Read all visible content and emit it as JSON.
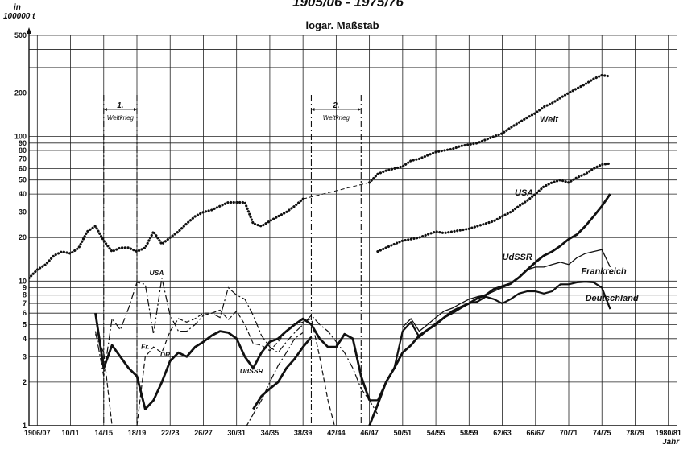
{
  "chart_data": {
    "type": "line",
    "title": "1905/06 - 1975/76",
    "subtitle": "logar. Maßstab",
    "yunit_line1": "in",
    "yunit_line2": "100000 t",
    "xlabel": "Jahr",
    "yscale": "log",
    "ylim": [
      1,
      500
    ],
    "yticks": [
      1,
      2,
      3,
      4,
      5,
      6,
      7,
      8,
      9,
      10,
      20,
      30,
      40,
      50,
      60,
      70,
      80,
      90,
      100,
      200,
      300,
      400,
      500
    ],
    "ytick_labels": [
      "1",
      "2",
      "3",
      "4",
      "5",
      "6",
      "7",
      "8",
      "9",
      "10",
      "20",
      "30",
      "40",
      "50",
      "60",
      "70",
      "80",
      "90",
      "100",
      "200",
      "",
      "",
      "500"
    ],
    "xlim": [
      1905,
      1983
    ],
    "x_tick_labels": [
      "1906/07",
      "10/11",
      "14/15",
      "18/19",
      "22/23",
      "26/27",
      "30/31",
      "34/35",
      "38/39",
      "42/44",
      "46/47",
      "50/51",
      "54/55",
      "58/59",
      "62/63",
      "66/67",
      "70/71",
      "74/75",
      "78/79",
      "1980/81"
    ],
    "annotations": [
      {
        "text_line1": "1.",
        "text_line2": "Weltkrieg",
        "x_start": 1914,
        "x_end": 1918
      },
      {
        "text_line1": "2.",
        "text_line2": "Weltkrieg",
        "x_start": 1939,
        "x_end": 1945
      }
    ],
    "series_labels": {
      "welt": "Welt",
      "usa": "USA",
      "udssr": "UdSSR",
      "frankreich": "Frankreich",
      "deutschland": "Deutschland",
      "usa_early": "USA",
      "fr": "Fr.",
      "dr": "DR",
      "udssr_early": "UdSSR"
    },
    "series": [
      {
        "key": "welt",
        "name": "Welt",
        "style": "dotted",
        "x": [
          1905,
          1906,
          1907,
          1908,
          1909,
          1910,
          1911,
          1912,
          1913,
          1914,
          1915,
          1916,
          1917,
          1918,
          1919,
          1920,
          1921,
          1922,
          1923,
          1924,
          1925,
          1926,
          1927,
          1928,
          1929,
          1930,
          1931,
          1932,
          1933,
          1934,
          1935,
          1936,
          1937,
          1938,
          1939,
          1940,
          1941,
          1942,
          1943,
          1944,
          1945,
          1946,
          1947,
          1948,
          1949,
          1950,
          1951,
          1952,
          1953,
          1954,
          1955,
          1956,
          1957,
          1958,
          1959,
          1960,
          1961,
          1962,
          1963,
          1964,
          1965,
          1966,
          1967,
          1968,
          1969,
          1970,
          1971,
          1972,
          1973,
          1974,
          1975
        ],
        "y": [
          10.5,
          12,
          13,
          15,
          16,
          15.5,
          17,
          22,
          24,
          19,
          16,
          17,
          17,
          16,
          17,
          22,
          18,
          20,
          22,
          25,
          28,
          30,
          31,
          33,
          35,
          35,
          35,
          25,
          24,
          26,
          28,
          30,
          33,
          37,
          36,
          35,
          36,
          34,
          33,
          33,
          33,
          48,
          55,
          58,
          60,
          62,
          68,
          70,
          74,
          78,
          80,
          82,
          86,
          88,
          90,
          95,
          100,
          105,
          115,
          125,
          135,
          145,
          160,
          170,
          185,
          200,
          215,
          230,
          250,
          265,
          260
        ],
        "gap": [
          [
            1938,
            1946
          ]
        ]
      },
      {
        "key": "usa",
        "name": "USA",
        "style": "dotted",
        "x": [
          1947,
          1948,
          1949,
          1950,
          1951,
          1952,
          1953,
          1954,
          1955,
          1956,
          1957,
          1958,
          1959,
          1960,
          1961,
          1962,
          1963,
          1964,
          1965,
          1966,
          1967,
          1968,
          1969,
          1970,
          1971,
          1972,
          1973,
          1974,
          1975
        ],
        "y": [
          16,
          17,
          18,
          19,
          19.5,
          20,
          21,
          22,
          21.5,
          22,
          22.5,
          23,
          24,
          25,
          26,
          28,
          30,
          33,
          36,
          40,
          45,
          48,
          50,
          48,
          52,
          55,
          60,
          64,
          65
        ],
        "gap": []
      },
      {
        "key": "udssr",
        "name": "UdSSR",
        "style": "thick",
        "x": [
          1946,
          1947,
          1948,
          1949,
          1950,
          1951,
          1952,
          1953,
          1954,
          1955,
          1956,
          1957,
          1958,
          1959,
          1960,
          1961,
          1962,
          1963,
          1964,
          1965,
          1966,
          1967,
          1968,
          1969,
          1970,
          1971,
          1972,
          1973,
          1974,
          1975
        ],
        "y": [
          1.0,
          1.4,
          2.0,
          2.5,
          3.2,
          3.6,
          4.2,
          4.6,
          5.0,
          5.6,
          6.2,
          6.6,
          7.0,
          7.6,
          8.0,
          8.8,
          9.2,
          9.6,
          10.6,
          12.0,
          13.5,
          15.0,
          16.0,
          17.5,
          19.5,
          21.0,
          24.0,
          28.0,
          33.0,
          40.0
        ],
        "gap": []
      },
      {
        "key": "frankreich",
        "name": "Frankreich",
        "style": "thin",
        "x": [
          1950,
          1951,
          1952,
          1953,
          1954,
          1955,
          1956,
          1957,
          1958,
          1959,
          1960,
          1961,
          1962,
          1963,
          1964,
          1965,
          1966,
          1967,
          1968,
          1969,
          1970,
          1971,
          1972,
          1973,
          1974,
          1975
        ],
        "y": [
          4.8,
          5.5,
          4.5,
          5.0,
          5.6,
          6.2,
          6.5,
          7.0,
          7.5,
          7.8,
          8.0,
          8.5,
          9.0,
          9.5,
          10.5,
          12.0,
          12.5,
          12.5,
          13.0,
          13.5,
          13.0,
          14.5,
          15.5,
          16.0,
          16.5,
          12.5
        ],
        "gap": []
      },
      {
        "key": "deutschland",
        "name": "Deutschland",
        "style": "medium",
        "x": [
          1946,
          1947,
          1948,
          1949,
          1950,
          1951,
          1952,
          1953,
          1954,
          1955,
          1956,
          1957,
          1958,
          1959,
          1960,
          1961,
          1962,
          1963,
          1964,
          1965,
          1966,
          1967,
          1968,
          1969,
          1970,
          1971,
          1972,
          1973,
          1974,
          1975
        ],
        "y": [
          1.5,
          1.5,
          2.0,
          2.5,
          4.5,
          5.2,
          4.1,
          4.6,
          5.1,
          5.6,
          6.0,
          6.5,
          7.0,
          7.2,
          7.8,
          7.5,
          7.0,
          7.5,
          8.2,
          8.5,
          8.5,
          8.2,
          8.5,
          9.5,
          9.5,
          9.8,
          9.9,
          9.8,
          9.0,
          6.4
        ],
        "gap": []
      },
      {
        "key": "usa_early",
        "name": "USA",
        "style": "dashdot",
        "x": [
          1913,
          1914,
          1915,
          1916,
          1917,
          1918,
          1919,
          1920,
          1921,
          1922,
          1923,
          1924,
          1925,
          1926,
          1927,
          1928,
          1929,
          1930,
          1931,
          1932,
          1933,
          1934,
          1935,
          1936,
          1937,
          1938,
          1939,
          1940,
          1941,
          1942,
          1943,
          1944,
          1945,
          1946,
          1947
        ],
        "y": [
          4.5,
          2.2,
          5.5,
          4.6,
          6.5,
          9.8,
          9.5,
          4.3,
          10.5,
          5.8,
          4.5,
          4.5,
          5.0,
          5.8,
          6.0,
          5.6,
          9.0,
          8.0,
          7.5,
          5.8,
          4.2,
          3.5,
          3.2,
          3.8,
          4.4,
          5.0,
          5.8,
          5.0,
          4.5,
          3.8,
          3.2,
          2.5,
          1.8,
          1.5,
          1.2
        ],
        "gap": []
      },
      {
        "key": "fr",
        "name": "Fr.",
        "style": "dashed",
        "x": [
          1913,
          1914,
          1915,
          1916,
          1917,
          1918,
          1919,
          1920,
          1921,
          1922,
          1923,
          1924,
          1925,
          1926,
          1927,
          1928,
          1929,
          1930,
          1931,
          1932,
          1933,
          1934,
          1935,
          1936,
          1937,
          1938,
          1939,
          1940,
          1941,
          1942
        ],
        "y": [
          4.3,
          3.2,
          1.0,
          0.8,
          0.8,
          1.0,
          3.0,
          3.5,
          3.2,
          4.5,
          5.5,
          5.2,
          5.5,
          6.0,
          6.0,
          6.3,
          5.4,
          6.2,
          5.0,
          3.7,
          3.6,
          3.3,
          3.8,
          4.5,
          5.0,
          5.2,
          5.5,
          3.0,
          1.5,
          0.8
        ],
        "gap": []
      },
      {
        "key": "dr",
        "name": "DR",
        "style": "thick",
        "x": [
          1913,
          1914,
          1915,
          1916,
          1917,
          1918,
          1919,
          1920,
          1921,
          1922,
          1923,
          1924,
          1925,
          1926,
          1927,
          1928,
          1929,
          1930,
          1931,
          1932,
          1933,
          1934,
          1935,
          1936,
          1937,
          1938,
          1939,
          1940,
          1941,
          1942,
          1943,
          1944,
          1945,
          1946
        ],
        "y": [
          6.0,
          2.5,
          3.6,
          3.0,
          2.5,
          2.2,
          1.3,
          1.5,
          2.0,
          2.8,
          3.2,
          3.0,
          3.5,
          3.8,
          4.2,
          4.5,
          4.4,
          4.0,
          3.0,
          2.5,
          3.2,
          3.8,
          4.0,
          4.5,
          5.0,
          5.5,
          5.0,
          4.0,
          3.5,
          3.5,
          4.3,
          4.0,
          2.2,
          1.5
        ],
        "gap": []
      },
      {
        "key": "udssr_early",
        "name": "UdSSR",
        "style": "thick",
        "x": [
          1932,
          1933,
          1934,
          1935,
          1936,
          1937,
          1938,
          1939
        ],
        "y": [
          1.3,
          1.6,
          1.8,
          2.0,
          2.5,
          2.9,
          3.5,
          4.1
        ],
        "gap": []
      },
      {
        "key": "udssr_early_dash",
        "name": "UdSSR",
        "style": "dashdot",
        "x": [
          1931,
          1932,
          1933,
          1934,
          1935,
          1936,
          1937,
          1938
        ],
        "y": [
          0.95,
          1.2,
          1.5,
          2.0,
          2.6,
          3.2,
          4.0,
          4.4
        ],
        "gap": []
      }
    ],
    "grid": true,
    "legend": "inline"
  }
}
